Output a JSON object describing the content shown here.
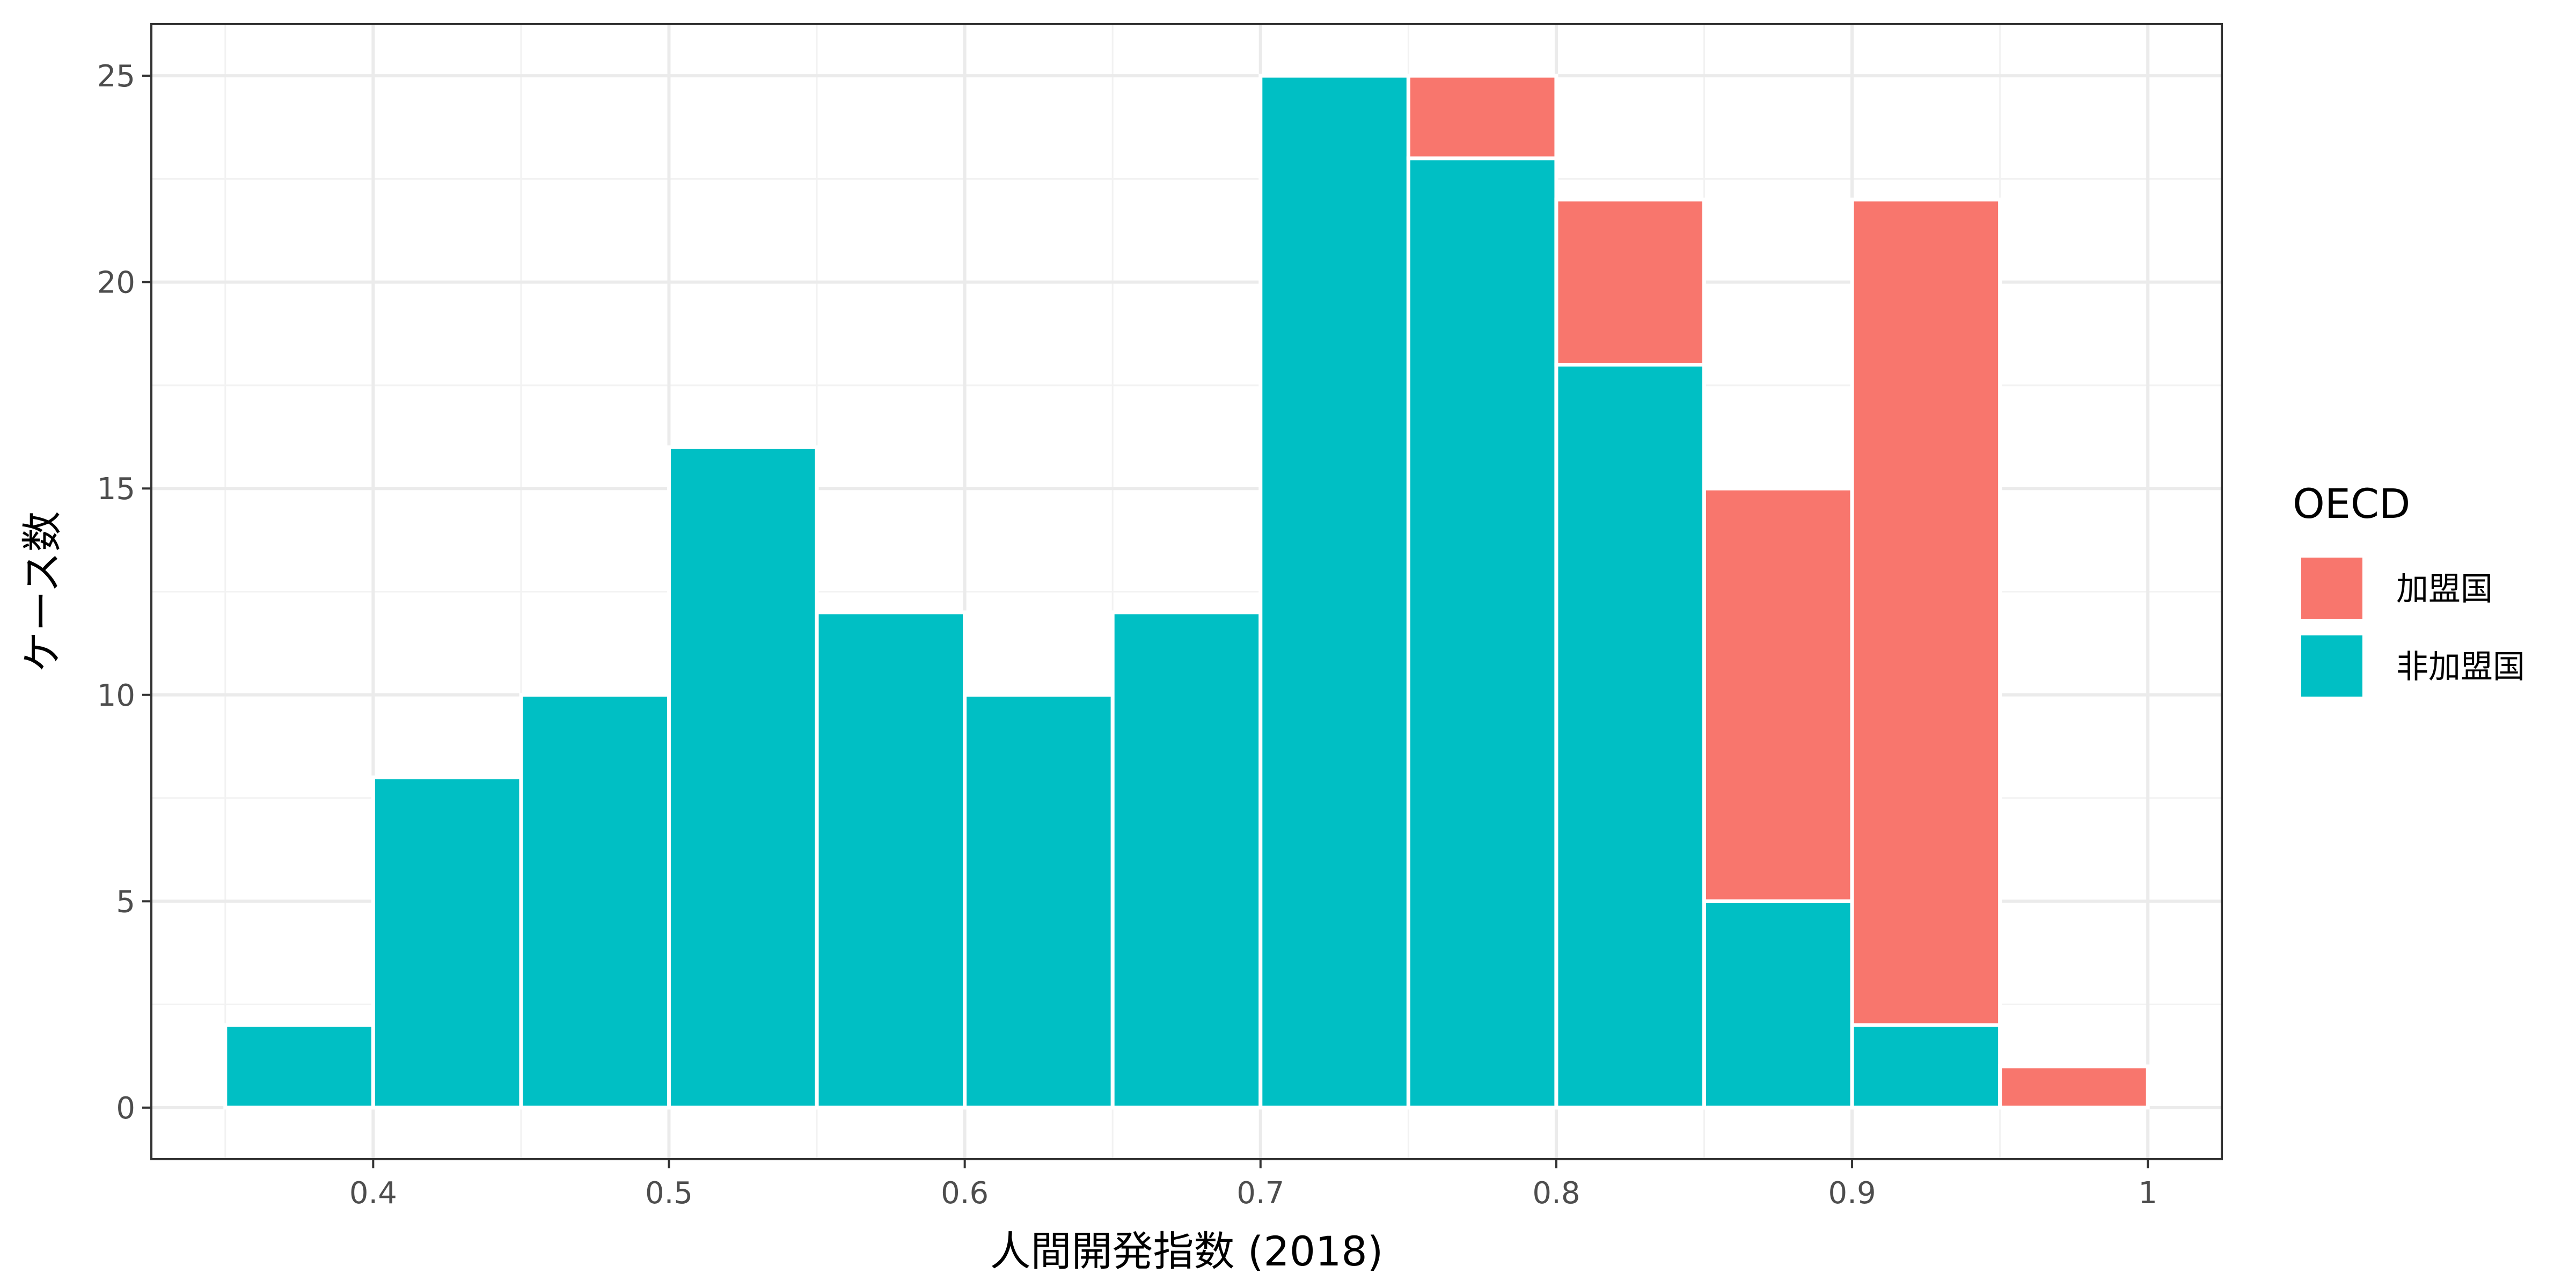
{
  "chart_data": {
    "type": "bar",
    "subtype": "stacked-histogram",
    "xlabel": "人間開発指数 (2018)",
    "ylabel": "ケース数",
    "xlim": [
      0.325,
      1.025
    ],
    "ylim": [
      -1.25,
      26.25
    ],
    "x_ticks": [
      0.4,
      0.5,
      0.6,
      0.7,
      0.8,
      0.9,
      1
    ],
    "x_tick_labels": [
      "0.4",
      "0.5",
      "0.6",
      "0.7",
      "0.8",
      "0.9",
      "1"
    ],
    "y_ticks": [
      0,
      5,
      10,
      15,
      20,
      25
    ],
    "y_tick_labels": [
      "0",
      "5",
      "10",
      "15",
      "20",
      "25"
    ],
    "bin_width": 0.05,
    "bin_starts": [
      0.35,
      0.4,
      0.45,
      0.5,
      0.55,
      0.6,
      0.65,
      0.7,
      0.75,
      0.8,
      0.85,
      0.9,
      0.95
    ],
    "series": [
      {
        "name": "非加盟国",
        "color": "#00BFC4",
        "values": [
          2,
          8,
          10,
          16,
          12,
          10,
          12,
          25,
          23,
          18,
          5,
          2,
          0
        ]
      },
      {
        "name": "加盟国",
        "color": "#F8766D",
        "values": [
          0,
          0,
          0,
          0,
          0,
          0,
          0,
          0,
          2,
          4,
          10,
          20,
          1
        ]
      }
    ],
    "legend": {
      "title": "OECD",
      "position": "right",
      "entries": [
        {
          "label": "加盟国",
          "color": "#F8766D"
        },
        {
          "label": "非加盟国",
          "color": "#00BFC4"
        }
      ]
    },
    "grid": true,
    "theme": "bw"
  }
}
